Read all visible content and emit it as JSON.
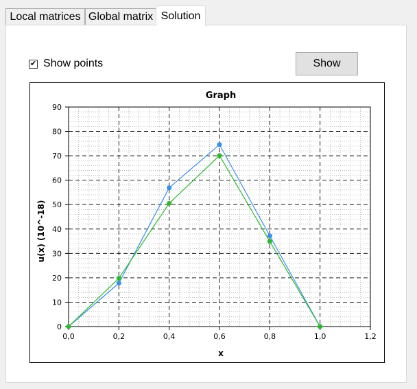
{
  "tabs": [
    {
      "label": "Local matrices",
      "active": false
    },
    {
      "label": "Global matrix",
      "active": false
    },
    {
      "label": "Solution",
      "active": true
    }
  ],
  "options": {
    "show_points_label": "Show points",
    "show_points_checked": true,
    "show_button_label": "Show"
  },
  "colors": {
    "series_blue": "#3b8eea",
    "series_green": "#2db82d",
    "grid": "#000000"
  },
  "chart_data": {
    "type": "line",
    "title": "Graph",
    "xlabel": "x",
    "ylabel": "u(x)  (10^-18)",
    "xlim": [
      0,
      1.2
    ],
    "ylim": [
      0,
      90
    ],
    "x_ticks": [
      "0,0",
      "0,2",
      "0,4",
      "0,6",
      "0,8",
      "1,0",
      "1,2"
    ],
    "y_ticks": [
      "0",
      "10",
      "20",
      "30",
      "40",
      "50",
      "60",
      "70",
      "80",
      "90"
    ],
    "grid": true,
    "markers": true,
    "series": [
      {
        "color": "#3b8eea",
        "x": [
          0.0,
          0.2,
          0.4,
          0.6,
          0.8,
          1.0
        ],
        "y": [
          0,
          17.8,
          56.9,
          74.6,
          37.2,
          0
        ]
      },
      {
        "color": "#2db82d",
        "x": [
          0.0,
          0.2,
          0.4,
          0.6,
          0.8,
          1.0
        ],
        "y": [
          0,
          19.8,
          50.5,
          70.1,
          34.9,
          0
        ]
      }
    ]
  }
}
